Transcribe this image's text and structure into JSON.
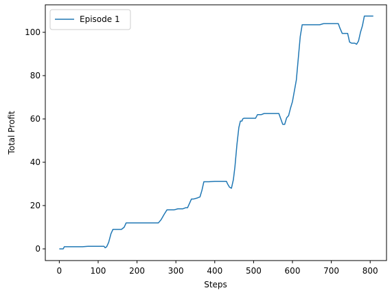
{
  "chart_data": {
    "type": "line",
    "title": "",
    "xlabel": "Steps",
    "ylabel": "Total Profit",
    "xlim": [
      -36,
      842
    ],
    "ylim": [
      -5.4,
      112.7
    ],
    "xticks": [
      0,
      100,
      200,
      300,
      400,
      500,
      600,
      700,
      800
    ],
    "yticks": [
      0,
      20,
      40,
      60,
      80,
      100
    ],
    "grid": false,
    "legend_position": "top-left",
    "series": [
      {
        "name": "Episode 1",
        "color": "#1f77b4",
        "x": [
          0,
          10,
          13,
          30,
          60,
          75,
          100,
          115,
          118,
          122,
          127,
          133,
          138,
          143,
          160,
          167,
          172,
          190,
          220,
          255,
          262,
          270,
          277,
          285,
          295,
          305,
          318,
          325,
          330,
          340,
          345,
          355,
          362,
          367,
          372,
          385,
          400,
          430,
          433,
          438,
          443,
          448,
          452,
          457,
          462,
          466,
          470,
          472,
          475,
          480,
          500,
          505,
          510,
          520,
          527,
          530,
          540,
          560,
          565,
          570,
          575,
          580,
          585,
          590,
          595,
          600,
          605,
          610,
          615,
          620,
          625,
          632,
          637,
          642,
          660,
          670,
          680,
          685,
          690,
          700,
          710,
          718,
          722,
          728,
          735,
          742,
          747,
          752,
          760,
          765,
          770,
          775,
          780,
          785,
          790,
          795,
          800,
          808
        ],
        "y": [
          0,
          0,
          1,
          1,
          1,
          1.2,
          1.2,
          1.2,
          0.5,
          1,
          3,
          7,
          9,
          9,
          9,
          10,
          12,
          12,
          12,
          12,
          13.5,
          16,
          18,
          18,
          18,
          18.5,
          18.5,
          19,
          19,
          23,
          23,
          23.5,
          24,
          27,
          31,
          31,
          31.2,
          31.2,
          30,
          28.5,
          28,
          32,
          38,
          48,
          56,
          59,
          59,
          60,
          60.3,
          60.3,
          60.3,
          60.3,
          62,
          62,
          62.5,
          62.5,
          62.5,
          62.5,
          62.5,
          60,
          57.5,
          57.5,
          60.5,
          61.5,
          65,
          68,
          73,
          78,
          88,
          98,
          103.5,
          103.5,
          103.5,
          103.5,
          103.5,
          103.5,
          104,
          104,
          104,
          104,
          104,
          104,
          102,
          99.5,
          99.5,
          99.5,
          95.5,
          95,
          95,
          94.5,
          96,
          100,
          103,
          107.5,
          107.5,
          107.5,
          107.5,
          107.5
        ]
      }
    ]
  }
}
